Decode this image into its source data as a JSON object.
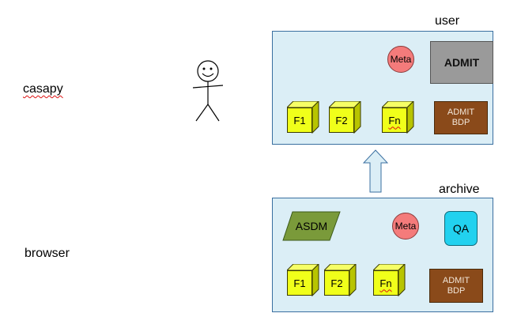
{
  "labels": {
    "casapy": "casapy",
    "browser": "browser",
    "user": "user",
    "archive": "archive"
  },
  "user_panel": {
    "admit_label": "ADMIT",
    "meta_label": "Meta",
    "bdp_line1": "ADMIT",
    "bdp_line2": "BDP",
    "cubes": [
      "F1",
      "F2",
      "Fn"
    ]
  },
  "archive_panel": {
    "asdm_label": "ASDM",
    "meta_label": "Meta",
    "qa_label": "QA",
    "bdp_line1": "ADMIT",
    "bdp_line2": "BDP",
    "cubes": [
      "F1",
      "F2",
      "Fn"
    ]
  },
  "colors": {
    "panel_fill": "#dbeef6",
    "cube_fill": "#f0ff1a",
    "meta_fill": "#f47b7b",
    "bdp_fill": "#8a4a1a",
    "admit_fill": "#9a9a9a",
    "qa_fill": "#22d1ef",
    "asdm_fill": "#7a9a3a",
    "arrow_fill": "#dbeef6"
  }
}
